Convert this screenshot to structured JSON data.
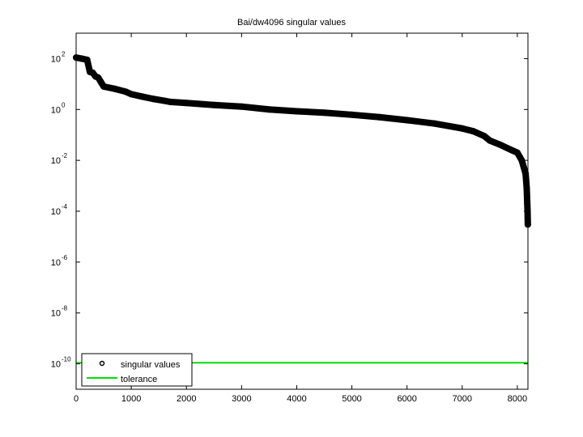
{
  "chart_data": {
    "type": "scatter",
    "title": "Bai/dw4096 singular values",
    "xlabel": "",
    "ylabel": "",
    "xscale": "linear",
    "yscale": "log",
    "xlim": [
      0,
      8192
    ],
    "ylim": [
      1e-11,
      1000.0
    ],
    "x_ticks": [
      0,
      1000,
      2000,
      3000,
      4000,
      5000,
      6000,
      7000,
      8000
    ],
    "x_tick_labels": [
      "0",
      "1000",
      "2000",
      "3000",
      "4000",
      "5000",
      "6000",
      "7000",
      "8000"
    ],
    "y_ticks": [
      100.0,
      1.0,
      0.01,
      0.0001,
      1e-06,
      1e-08,
      1e-10
    ],
    "y_tick_labels": [
      {
        "base": "10",
        "exp": "2"
      },
      {
        "base": "10",
        "exp": "0"
      },
      {
        "base": "10",
        "exp": "-2"
      },
      {
        "base": "10",
        "exp": "-4"
      },
      {
        "base": "10",
        "exp": "-6"
      },
      {
        "base": "10",
        "exp": "-8"
      },
      {
        "base": "10",
        "exp": "-10"
      }
    ],
    "grid": false,
    "legend_position": "lower left",
    "series": [
      {
        "name": "singular values",
        "marker": "o",
        "color": "#000000",
        "x": [
          0,
          100,
          200,
          250,
          300,
          350,
          400,
          450,
          500,
          700,
          900,
          1000,
          1200,
          1400,
          1600,
          1700,
          2000,
          2500,
          3000,
          3500,
          4000,
          4500,
          5000,
          5500,
          6000,
          6500,
          7000,
          7200,
          7400,
          7500,
          7700,
          7900,
          8000,
          8080,
          8120,
          8150,
          8170,
          8180,
          8185,
          8190
        ],
        "values": [
          110,
          100,
          90,
          30,
          28,
          20,
          18,
          12,
          8,
          6.5,
          5,
          4,
          3.2,
          2.6,
          2.2,
          2,
          1.8,
          1.5,
          1.3,
          1.0,
          0.85,
          0.75,
          0.62,
          0.5,
          0.38,
          0.28,
          0.18,
          0.14,
          0.09,
          0.06,
          0.04,
          0.025,
          0.02,
          0.01,
          0.005,
          0.003,
          0.0008,
          0.0002,
          0.0001,
          3e-05
        ]
      },
      {
        "name": "tolerance",
        "marker": "line",
        "color": "#00e000",
        "x": [
          0,
          8192
        ],
        "values": [
          1.1e-10,
          1.1e-10
        ]
      }
    ]
  },
  "legend": {
    "items": [
      {
        "label": "singular values"
      },
      {
        "label": "tolerance"
      }
    ]
  },
  "colors": {
    "markers": "#000000",
    "tolerance": "#00e000",
    "axes": "#000000",
    "background": "#ffffff"
  }
}
